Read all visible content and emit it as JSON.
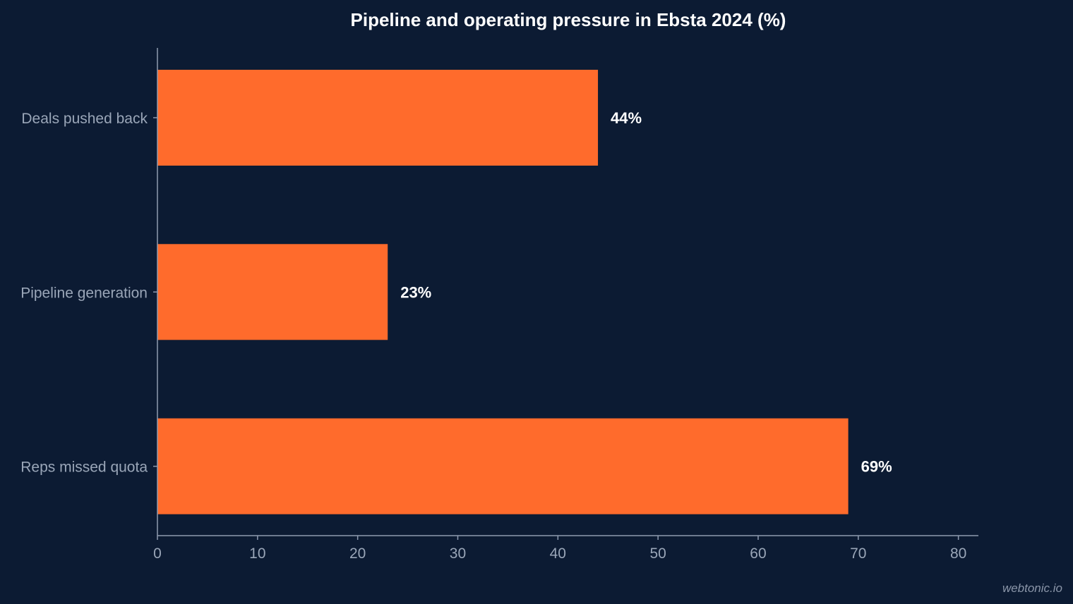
{
  "chart_data": {
    "type": "bar",
    "orientation": "horizontal",
    "title": "Pipeline and operating pressure in Ebsta 2024 (%)",
    "categories": [
      "Deals pushed back",
      "Pipeline generation",
      "Reps missed quota"
    ],
    "values": [
      44,
      23,
      69
    ],
    "data_labels": [
      "44%",
      "23%",
      "69%"
    ],
    "xlim": [
      0,
      82
    ],
    "xticks": [
      0,
      10,
      20,
      30,
      40,
      50,
      60,
      70,
      80
    ],
    "xlabel": "",
    "ylabel": "",
    "grid": false,
    "bar_color": "#ff6b2c"
  },
  "watermark": "webtonic.io",
  "colors": {
    "background": "#0c1b33",
    "bar": "#ff6b2c",
    "axis": "#8f9bb0",
    "label": "#9aa6b8",
    "title": "#ffffff"
  }
}
